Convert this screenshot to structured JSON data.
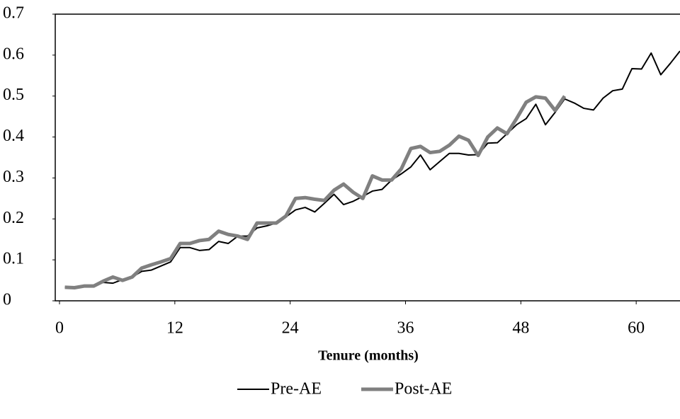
{
  "chart_data": {
    "type": "line",
    "x_label": "Tenure (months)",
    "xlim": [
      0,
      65
    ],
    "ylim": [
      0,
      0.7
    ],
    "xticks": [
      0,
      12,
      24,
      36,
      48,
      60
    ],
    "yticks": [
      0,
      0.1,
      0.2,
      0.3,
      0.4,
      0.5,
      0.6,
      0.7
    ],
    "series": [
      {
        "name": "Pre-AE",
        "color": "#000000",
        "width": 2,
        "x": [
          1,
          2,
          3,
          4,
          5,
          6,
          7,
          8,
          9,
          10,
          11,
          12,
          13,
          14,
          15,
          16,
          17,
          18,
          19,
          20,
          21,
          22,
          23,
          24,
          25,
          26,
          27,
          28,
          29,
          30,
          31,
          32,
          33,
          34,
          35,
          36,
          37,
          38,
          39,
          40,
          41,
          42,
          43,
          44,
          45,
          46,
          47,
          48,
          49,
          50,
          51,
          52,
          53,
          54,
          55,
          56,
          57,
          58,
          59,
          60,
          61,
          62,
          63,
          64,
          65
        ],
        "values": [
          0.033,
          0.03,
          0.035,
          0.037,
          0.045,
          0.043,
          0.052,
          0.058,
          0.072,
          0.075,
          0.085,
          0.095,
          0.13,
          0.13,
          0.123,
          0.125,
          0.145,
          0.14,
          0.158,
          0.158,
          0.178,
          0.183,
          0.19,
          0.205,
          0.222,
          0.228,
          0.217,
          0.238,
          0.26,
          0.235,
          0.243,
          0.255,
          0.268,
          0.272,
          0.295,
          0.31,
          0.327,
          0.356,
          0.32,
          0.34,
          0.36,
          0.36,
          0.356,
          0.357,
          0.385,
          0.386,
          0.408,
          0.43,
          0.445,
          0.48,
          0.43,
          0.46,
          0.493,
          0.483,
          0.47,
          0.466,
          0.495,
          0.513,
          0.517,
          0.567,
          0.566,
          0.605,
          0.552,
          0.58,
          0.61
        ]
      },
      {
        "name": "Post-AE",
        "color": "#808080",
        "width": 5,
        "x": [
          1,
          2,
          3,
          4,
          5,
          6,
          7,
          8,
          9,
          10,
          11,
          12,
          13,
          14,
          15,
          16,
          17,
          18,
          19,
          20,
          21,
          22,
          23,
          24,
          25,
          26,
          27,
          28,
          29,
          30,
          31,
          32,
          33,
          34,
          35,
          36,
          37,
          38,
          39,
          40,
          41,
          42,
          43,
          44,
          45,
          46,
          47,
          48,
          49,
          50,
          51,
          52,
          53
        ],
        "values": [
          0.033,
          0.032,
          0.036,
          0.036,
          0.048,
          0.058,
          0.05,
          0.058,
          0.08,
          0.088,
          0.095,
          0.103,
          0.14,
          0.14,
          0.147,
          0.15,
          0.17,
          0.162,
          0.158,
          0.15,
          0.19,
          0.19,
          0.19,
          0.207,
          0.25,
          0.252,
          0.248,
          0.245,
          0.27,
          0.285,
          0.265,
          0.25,
          0.305,
          0.295,
          0.295,
          0.322,
          0.372,
          0.377,
          0.362,
          0.365,
          0.38,
          0.402,
          0.392,
          0.355,
          0.4,
          0.422,
          0.408,
          0.445,
          0.485,
          0.498,
          0.495,
          0.465,
          0.5
        ]
      }
    ]
  }
}
